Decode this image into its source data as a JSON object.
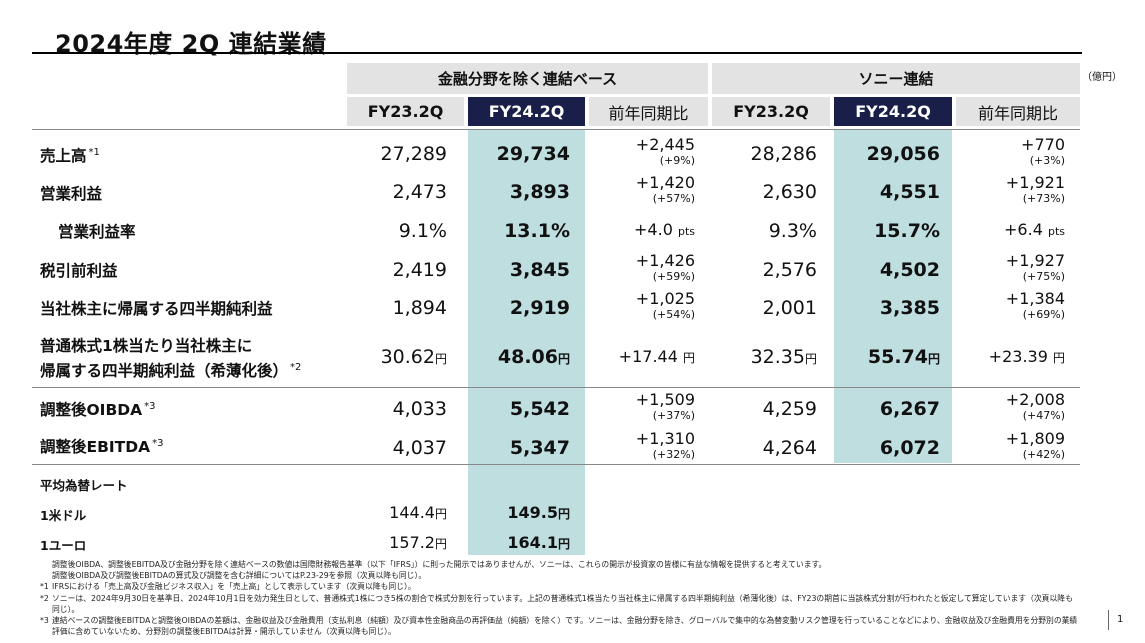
{
  "title": "2024年度 2Q 連結業績",
  "unit_label": "（億円）",
  "groups": {
    "ex_financial": "金融分野を除く連結ベース",
    "sony": "ソニー連結"
  },
  "columns": {
    "a_prev": "FY23.2Q",
    "a_curr": "FY24.2Q",
    "a_chg": "前年同期比",
    "b_prev": "FY23.2Q",
    "b_curr": "FY24.2Q",
    "b_chg": "前年同期比"
  },
  "rows": [
    {
      "label": "売上高",
      "sup": "*1",
      "a_prev": "27,289",
      "a_curr": "29,734",
      "a_chg": "+2,445",
      "a_pct": "(+9%)",
      "b_prev": "28,286",
      "b_curr": "29,056",
      "b_chg": "+770",
      "b_pct": "(+3%)"
    },
    {
      "label": "営業利益",
      "sup": "",
      "a_prev": "2,473",
      "a_curr": "3,893",
      "a_chg": "+1,420",
      "a_pct": "(+57%)",
      "b_prev": "2,630",
      "b_curr": "4,551",
      "b_chg": "+1,921",
      "b_pct": "(+73%)"
    },
    {
      "label": "営業利益率",
      "sup": "",
      "a_prev": "9.1%",
      "a_curr": "13.1%",
      "a_chg": "+4.0",
      "a_pct": "pts",
      "b_prev": "9.3%",
      "b_curr": "15.7%",
      "b_chg": "+6.4",
      "b_pct": "pts"
    },
    {
      "label": "税引前利益",
      "sup": "",
      "a_prev": "2,419",
      "a_curr": "3,845",
      "a_chg": "+1,426",
      "a_pct": "(+59%)",
      "b_prev": "2,576",
      "b_curr": "4,502",
      "b_chg": "+1,927",
      "b_pct": "(+75%)"
    },
    {
      "label": "当社株主に帰属する四半期純利益",
      "sup": "",
      "a_prev": "1,894",
      "a_curr": "2,919",
      "a_chg": "+1,025",
      "a_pct": "(+54%)",
      "b_prev": "2,001",
      "b_curr": "3,385",
      "b_chg": "+1,384",
      "b_pct": "(+69%)"
    },
    {
      "label1": "普通株式1株当たり当社株主に",
      "label2": "帰属する四半期純利益（希薄化後）",
      "sup": "*2",
      "a_prev": "30.62",
      "a_curr": "48.06",
      "a_chg": "+17.44",
      "b_prev": "32.35",
      "b_curr": "55.74",
      "b_chg": "+23.39",
      "yen": "円"
    },
    {
      "label": "調整後OIBDA",
      "sup": "*3",
      "a_prev": "4,033",
      "a_curr": "5,542",
      "a_chg": "+1,509",
      "a_pct": "(+37%)",
      "b_prev": "4,259",
      "b_curr": "6,267",
      "b_chg": "+2,008",
      "b_pct": "(+47%)"
    },
    {
      "label": "調整後EBITDA",
      "sup": "*3",
      "a_prev": "4,037",
      "a_curr": "5,347",
      "a_chg": "+1,310",
      "a_pct": "(+32%)",
      "b_prev": "4,264",
      "b_curr": "6,072",
      "b_chg": "+1,809",
      "b_pct": "(+42%)"
    }
  ],
  "fx": {
    "heading": "平均為替レート",
    "rows": [
      {
        "label": "1米ドル",
        "prev": "144.4",
        "curr": "149.5",
        "yen": "円"
      },
      {
        "label": "1ユーロ",
        "prev": "157.2",
        "curr": "164.1",
        "yen": "円"
      }
    ]
  },
  "notes": [
    {
      "mark": "",
      "text": "調整後OIBDA、調整後EBITDA及び金融分野を除く連結ベースの数値は国際財務報告基準（以下「IFRS」）に則った開示ではありませんが、ソニーは、これらの開示が投資家の皆様に有益な情報を提供すると考えています。"
    },
    {
      "mark": "",
      "text": "調整後OIBDA及び調整後EBITDAの算式及び調整を含む詳細についてはP.23-29を参照（次頁以降も同じ）。"
    },
    {
      "mark": "*1",
      "text": "IFRSにおける「売上高及び金融ビジネス収入」を「売上高」として表示しています（次頁以降も同じ）。"
    },
    {
      "mark": "*2",
      "text": "ソニーは、2024年9月30日を基準日、2024年10月1日を効力発生日として、普通株式1株につき5株の割合で株式分割を行っています。上記の普通株式1株当たり当社株主に帰属する四半期純利益（希薄化後）は、FY23の期首に当該株式分割が行われたと仮定して算定しています（次頁以降も同じ）。"
    },
    {
      "mark": "*3",
      "text": "連結ベースの調整後EBITDAと調整後OIBDAの差額は、金融収益及び金融費用（支払利息（純額）及び資本性金融商品の再評価益（純額）を除く）です。ソニーは、金融分野を除き、グローバルで集中的な為替変動リスク管理を行っていることなどにより、金融収益及び金融費用を分野別の業績評価に含めていないため、分野別の調整後EBITDAは計算・開示していません（次頁以降も同じ）。"
    }
  ],
  "page_number": "1"
}
